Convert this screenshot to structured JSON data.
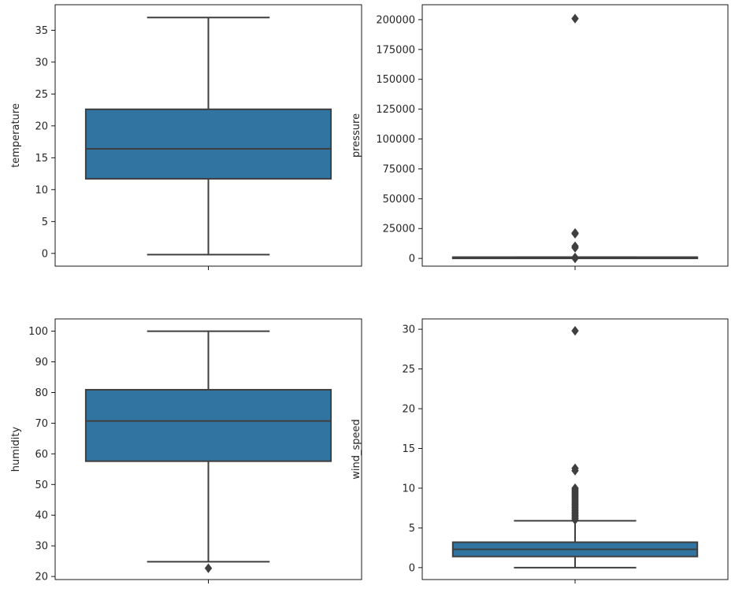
{
  "chart_data": [
    {
      "type": "boxplot",
      "xlabel": "",
      "ylabel": "temperature",
      "ylim": [
        -2,
        39
      ],
      "yticks": [
        0,
        5,
        10,
        15,
        20,
        25,
        30,
        35
      ],
      "box": {
        "whisker_low": -0.2,
        "q1": 11.7,
        "median": 16.4,
        "q3": 22.6,
        "whisker_high": 37.0
      },
      "outliers": [],
      "color": "#3274a1"
    },
    {
      "type": "boxplot",
      "xlabel": "",
      "ylabel": "pressure",
      "ylim": [
        -6500,
        212500
      ],
      "yticks": [
        0,
        25000,
        50000,
        75000,
        100000,
        125000,
        150000,
        175000,
        200000
      ],
      "box": {
        "whisker_low": 1000,
        "q1": 1005,
        "median": 1012,
        "q3": 1018,
        "whisker_high": 1032
      },
      "outliers": [
        200900,
        21300,
        20600,
        10200,
        8900,
        800,
        500,
        200,
        0
      ],
      "color": "#3274a1"
    },
    {
      "type": "boxplot",
      "xlabel": "",
      "ylabel": "humidity",
      "ylim": [
        19,
        104
      ],
      "yticks": [
        20,
        30,
        40,
        50,
        60,
        70,
        80,
        90,
        100
      ],
      "box": {
        "whisker_low": 24.8,
        "q1": 57.6,
        "median": 70.7,
        "q3": 80.9,
        "whisker_high": 100
      },
      "outliers": [
        22.7
      ],
      "color": "#3274a1"
    },
    {
      "type": "boxplot",
      "xlabel": "",
      "ylabel": "wind_speed",
      "ylim": [
        -1.5,
        31.3
      ],
      "yticks": [
        0,
        5,
        10,
        15,
        20,
        25,
        30
      ],
      "box": {
        "whisker_low": 0.0,
        "q1": 1.4,
        "median": 2.3,
        "q3": 3.2,
        "whisker_high": 5.9
      },
      "outliers": [
        29.8,
        12.5,
        12.2,
        10.0,
        9.8,
        9.6,
        9.4,
        9.2,
        9.0,
        8.8,
        8.6,
        8.4,
        8.2,
        8.0,
        7.8,
        7.6,
        7.4,
        7.2,
        7.0,
        6.8,
        6.6,
        6.4,
        6.2,
        6.0
      ],
      "color": "#3274a1"
    }
  ]
}
